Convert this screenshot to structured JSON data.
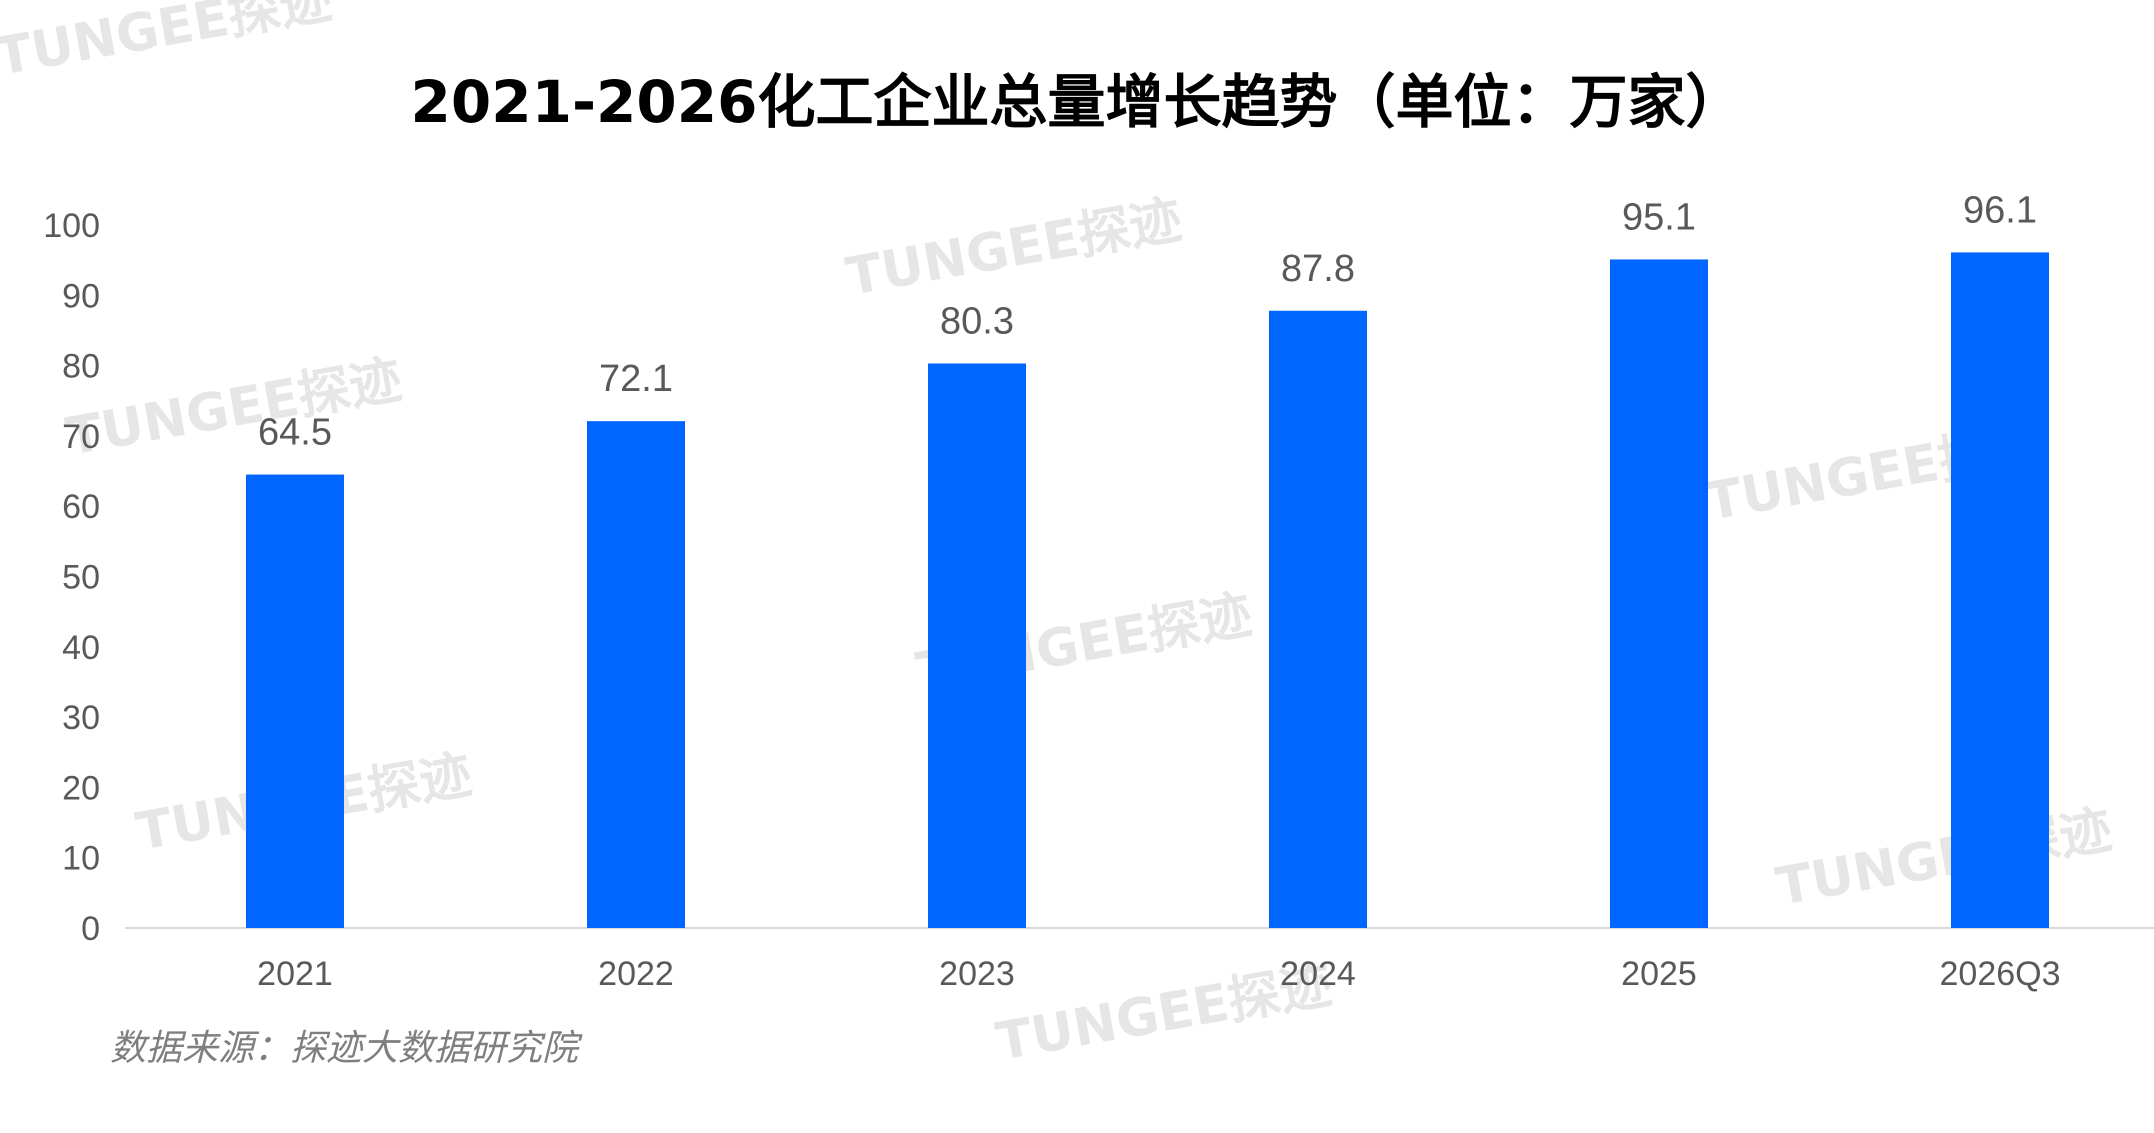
{
  "chart_data": {
    "type": "bar",
    "title": "2021-2026化工企业总量增长趋势（单位：万家）",
    "categories": [
      "2021",
      "2022",
      "2023",
      "2024",
      "2025",
      "2026Q3"
    ],
    "values": [
      64.5,
      72.1,
      80.3,
      87.8,
      95.1,
      96.1
    ],
    "data_labels": [
      "64.5",
      "72.1",
      "80.3",
      "87.8",
      "95.1",
      "96.1"
    ],
    "ylim": [
      0,
      100
    ],
    "y_ticks": [
      "0",
      "10",
      "20",
      "30",
      "40",
      "50",
      "60",
      "70",
      "80",
      "90",
      "100"
    ],
    "grid": false,
    "legend": "none",
    "bar_color": "#0066FF"
  },
  "source_text": "数据来源：探迹大数据研究院",
  "watermark_text": "TUNGEE探迹"
}
